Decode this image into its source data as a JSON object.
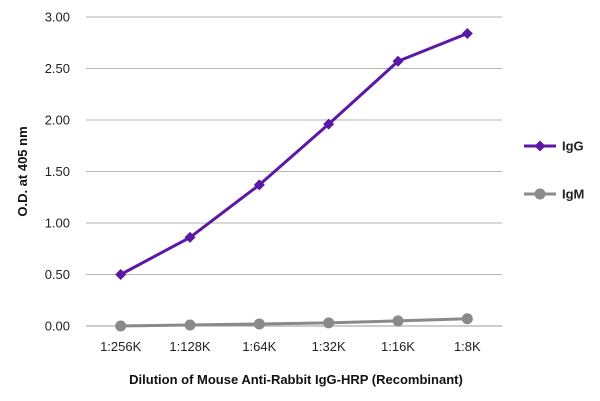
{
  "chart_data": {
    "type": "line",
    "categories": [
      "1:256K",
      "1:128K",
      "1:64K",
      "1:32K",
      "1:16K",
      "1:8K"
    ],
    "series": [
      {
        "name": "IgG",
        "values": [
          0.5,
          0.86,
          1.37,
          1.96,
          2.57,
          2.84
        ],
        "color": "#5b17a6",
        "marker": "diamond"
      },
      {
        "name": "IgM",
        "values": [
          0.0,
          0.01,
          0.02,
          0.03,
          0.05,
          0.07
        ],
        "color": "#8a8a8a",
        "marker": "circle"
      }
    ],
    "yticks": [
      "0.00",
      "0.50",
      "1.00",
      "1.50",
      "2.00",
      "2.50",
      "3.00"
    ],
    "ylim": [
      0,
      3
    ],
    "xlabel": "Dilution of Mouse Anti-Rabbit IgG-HRP (Recombinant)",
    "ylabel": "O.D. at 405 nm",
    "grid": true,
    "legend_position": "right"
  }
}
